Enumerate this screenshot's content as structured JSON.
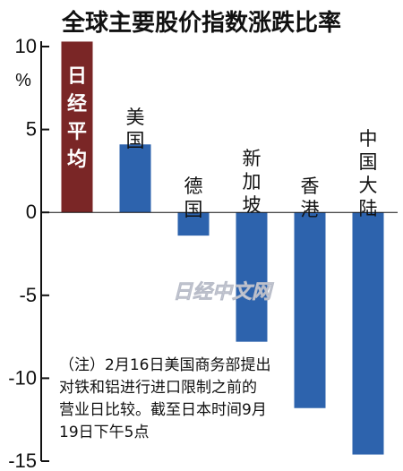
{
  "title": "全球主要股价指数涨跌比率",
  "unit_label": "%",
  "watermark": "日经中文网",
  "note_lines": [
    "（注）2月16日美国商务部提出",
    "对铁和铝进行进口限制之前的",
    "营业日比较。截至日本时间9月",
    "19日下午5点"
  ],
  "colors": {
    "highlight": "#7a2626",
    "bar": "#2d63ad",
    "axis": "#111111"
  },
  "chart_data": {
    "type": "bar",
    "title": "全球主要股价指数涨跌比率",
    "ylabel": "%",
    "ylim": [
      -15,
      10
    ],
    "yticks": [
      10,
      5,
      0,
      -5,
      -10,
      -15
    ],
    "grid": false,
    "categories": [
      "日经平均",
      "美国",
      "德国",
      "新加坡",
      "香港",
      "中国大陆"
    ],
    "values": [
      10.3,
      4.1,
      -1.4,
      -7.8,
      -11.8,
      -14.6
    ],
    "highlight_index": 0
  }
}
